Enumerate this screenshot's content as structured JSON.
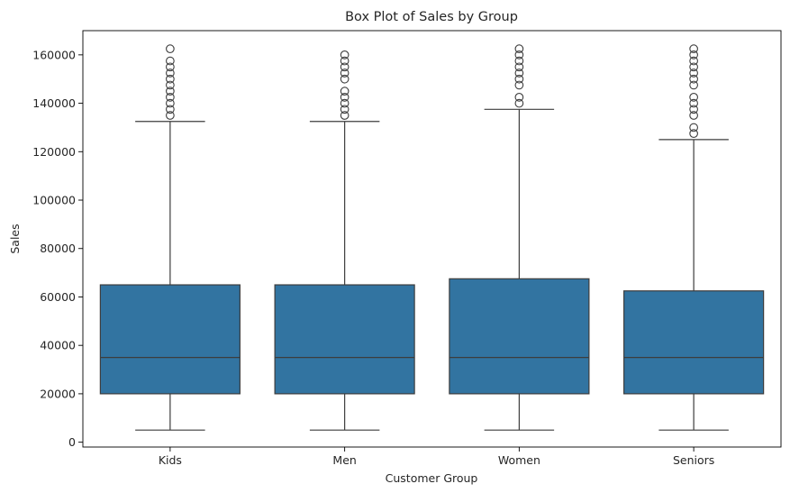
{
  "chart_data": {
    "type": "box",
    "title": "Box Plot of Sales by Group",
    "xlabel": "Customer Group",
    "ylabel": "Sales",
    "ylim": [
      -2000,
      170000
    ],
    "yticks": [
      0,
      20000,
      40000,
      60000,
      80000,
      100000,
      120000,
      140000,
      160000
    ],
    "ytick_labels": [
      "0",
      "20000",
      "40000",
      "60000",
      "80000",
      "100000",
      "120000",
      "140000",
      "160000"
    ],
    "grid": false,
    "box_color": "#3274a1",
    "line_color": "#3d3d3d",
    "categories": [
      "Kids",
      "Men",
      "Women",
      "Seniors"
    ],
    "boxes": [
      {
        "category": "Kids",
        "whisker_low": 5000,
        "q1": 20000,
        "median": 35000,
        "q3": 65000,
        "whisker_high": 132500,
        "outliers": [
          135000,
          137500,
          140000,
          142500,
          145000,
          147500,
          150000,
          152500,
          155000,
          157500,
          162500
        ]
      },
      {
        "category": "Men",
        "whisker_low": 5000,
        "q1": 20000,
        "median": 35000,
        "q3": 65000,
        "whisker_high": 132500,
        "outliers": [
          135000,
          137500,
          140000,
          142500,
          145000,
          150000,
          152500,
          155000,
          157500,
          160000
        ]
      },
      {
        "category": "Women",
        "whisker_low": 5000,
        "q1": 20000,
        "median": 35000,
        "q3": 67500,
        "whisker_high": 137500,
        "outliers": [
          140000,
          142500,
          147500,
          150000,
          152500,
          155000,
          157500,
          160000,
          162500
        ]
      },
      {
        "category": "Seniors",
        "whisker_low": 5000,
        "q1": 20000,
        "median": 35000,
        "q3": 62500,
        "whisker_high": 125000,
        "outliers": [
          127500,
          130000,
          135000,
          137500,
          140000,
          142500,
          147500,
          150000,
          152500,
          155000,
          157500,
          160000,
          162500
        ]
      }
    ]
  }
}
